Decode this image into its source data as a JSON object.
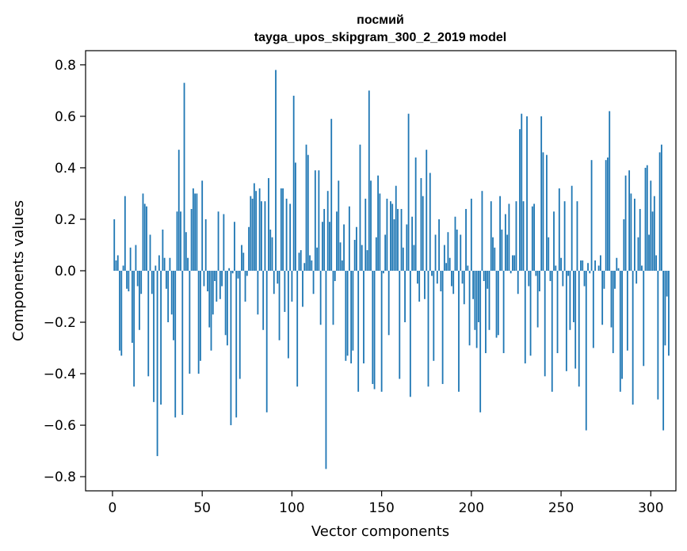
{
  "chart_data": {
    "type": "bar",
    "title_line1": "посмий",
    "title_line2": "tayga_upos_skipgram_300_2_2019 model",
    "xlabel": "Vector components",
    "ylabel": "Components values",
    "xlim": [
      -15,
      314
    ],
    "ylim": [
      -0.855,
      0.855
    ],
    "xticks": [
      0,
      50,
      100,
      150,
      200,
      250,
      300
    ],
    "xtick_labels": [
      "0",
      "50",
      "100",
      "150",
      "200",
      "250",
      "300"
    ],
    "yticks": [
      0.8,
      0.6,
      0.4,
      0.2,
      0.0,
      -0.2,
      -0.4,
      -0.6,
      -0.8
    ],
    "ytick_labels": [
      "0.8",
      "0.6",
      "0.4",
      "0.2",
      "0.0",
      "−0.2",
      "−0.4",
      "−0.6",
      "−0.8"
    ],
    "grid": false,
    "bar_color": "#1f77b4",
    "x_start": 0,
    "values": [
      0.0,
      0.2,
      0.04,
      0.06,
      -0.31,
      -0.33,
      0.02,
      0.29,
      -0.07,
      -0.08,
      0.09,
      -0.28,
      -0.45,
      0.1,
      -0.06,
      -0.23,
      -0.09,
      0.3,
      0.26,
      0.25,
      -0.41,
      0.14,
      -0.09,
      -0.51,
      0.02,
      -0.72,
      0.06,
      -0.52,
      0.16,
      0.05,
      -0.07,
      -0.2,
      0.05,
      -0.17,
      -0.27,
      -0.57,
      0.23,
      0.47,
      0.23,
      -0.56,
      0.73,
      0.15,
      0.05,
      -0.4,
      0.24,
      0.32,
      0.3,
      0.3,
      -0.4,
      -0.35,
      0.35,
      -0.06,
      0.2,
      -0.08,
      -0.22,
      -0.31,
      -0.17,
      -0.04,
      -0.12,
      0.23,
      -0.11,
      -0.06,
      0.22,
      -0.25,
      -0.29,
      0.01,
      -0.6,
      -0.01,
      0.19,
      -0.57,
      -0.03,
      -0.42,
      0.1,
      0.07,
      -0.12,
      -0.02,
      0.17,
      0.29,
      0.28,
      0.34,
      0.31,
      -0.17,
      0.32,
      0.27,
      -0.23,
      0.27,
      -0.55,
      0.36,
      0.16,
      0.13,
      -0.09,
      0.78,
      -0.05,
      -0.27,
      0.32,
      0.32,
      -0.16,
      0.28,
      -0.34,
      0.26,
      -0.12,
      0.68,
      0.42,
      -0.45,
      0.07,
      0.08,
      -0.14,
      0.03,
      0.49,
      0.45,
      0.06,
      0.04,
      -0.09,
      0.39,
      0.09,
      0.39,
      -0.21,
      0.19,
      0.24,
      -0.77,
      0.31,
      0.19,
      0.59,
      -0.21,
      -0.04,
      0.23,
      0.35,
      0.11,
      0.04,
      0.18,
      -0.35,
      -0.33,
      0.25,
      -0.36,
      -0.31,
      0.12,
      0.17,
      -0.47,
      0.49,
      0.1,
      -0.36,
      0.28,
      0.08,
      0.7,
      0.35,
      -0.44,
      -0.46,
      0.13,
      0.37,
      0.3,
      -0.47,
      -0.01,
      0.14,
      0.28,
      -0.25,
      0.27,
      0.26,
      0.2,
      0.33,
      0.24,
      -0.42,
      0.24,
      0.09,
      -0.2,
      0.18,
      0.61,
      -0.49,
      0.21,
      0.1,
      0.44,
      -0.05,
      -0.12,
      0.36,
      0.29,
      -0.11,
      0.47,
      -0.45,
      0.38,
      -0.02,
      -0.35,
      0.14,
      -0.05,
      0.2,
      -0.08,
      -0.44,
      0.1,
      0.03,
      0.15,
      0.05,
      -0.06,
      -0.09,
      0.21,
      0.16,
      -0.47,
      0.14,
      -0.05,
      -0.13,
      0.24,
      0.02,
      -0.29,
      0.28,
      -0.11,
      -0.23,
      -0.3,
      -0.2,
      -0.55,
      0.31,
      -0.04,
      -0.32,
      -0.07,
      -0.23,
      0.27,
      0.13,
      0.09,
      -0.26,
      -0.25,
      0.29,
      0.16,
      -0.32,
      0.22,
      0.14,
      0.26,
      -0.01,
      0.06,
      0.06,
      0.27,
      -0.09,
      0.55,
      0.61,
      0.27,
      -0.36,
      0.6,
      -0.06,
      -0.33,
      0.25,
      0.26,
      -0.02,
      -0.22,
      -0.08,
      0.6,
      0.46,
      -0.41,
      0.45,
      0.13,
      -0.04,
      -0.47,
      0.23,
      0.02,
      -0.32,
      0.32,
      0.05,
      -0.06,
      0.27,
      -0.39,
      -0.02,
      -0.23,
      0.33,
      -0.2,
      -0.38,
      0.27,
      -0.45,
      0.04,
      0.04,
      -0.06,
      -0.62,
      0.03,
      -0.01,
      0.43,
      -0.3,
      0.04,
      0.0,
      0.02,
      0.06,
      -0.21,
      -0.07,
      0.43,
      0.44,
      0.62,
      -0.22,
      -0.32,
      -0.07,
      0.05,
      0.01,
      -0.47,
      -0.42,
      0.2,
      0.37,
      -0.31,
      0.39,
      0.3,
      -0.52,
      0.28,
      -0.05,
      0.13,
      0.24,
      0.02,
      -0.37,
      0.4,
      0.41,
      0.14,
      0.35,
      0.23,
      0.29,
      0.06,
      -0.5,
      0.46,
      0.49,
      -0.62,
      -0.29,
      -0.1,
      -0.33
    ]
  }
}
